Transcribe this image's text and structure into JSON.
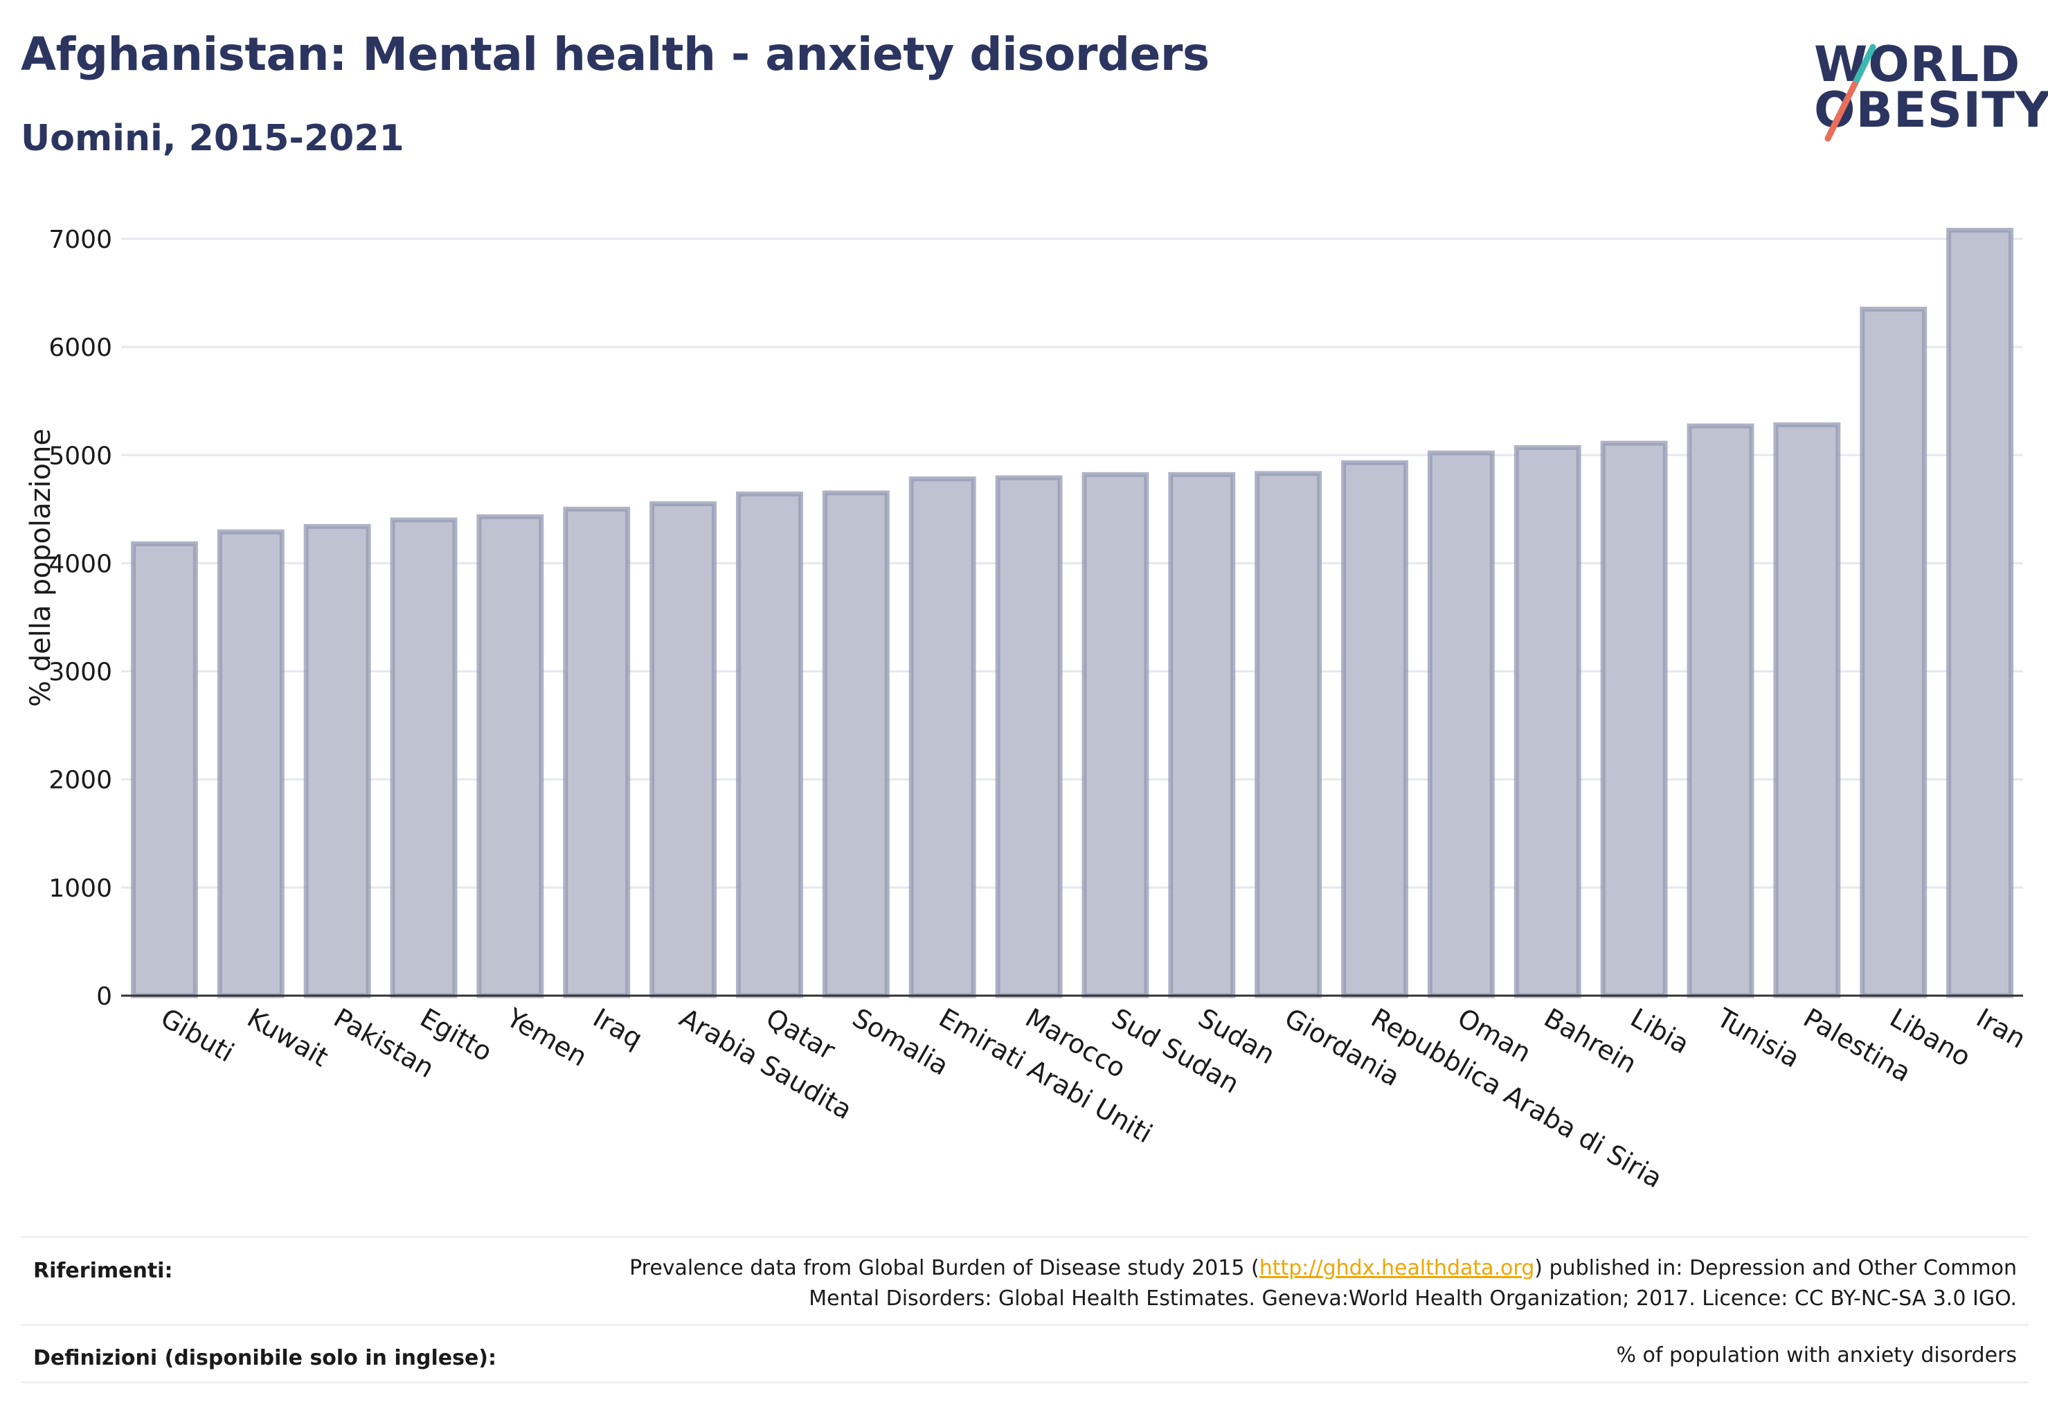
{
  "header": {
    "title": "Afghanistan: Mental health - anxiety disorders",
    "subtitle": "Uomini, 2015-2021"
  },
  "logo": {
    "line1": "WORLD",
    "line2": "OBESITY",
    "colors": {
      "text": "#2b3560",
      "teal": "#3bb8b0",
      "coral": "#e8705b"
    }
  },
  "chart_data": {
    "type": "bar",
    "categories": [
      "Gibuti",
      "Kuwait",
      "Pakistan",
      "Egitto",
      "Yemen",
      "Iraq",
      "Arabia Saudita",
      "Qatar",
      "Somalia",
      "Emirati Arabi Uniti",
      "Marocco",
      "Sud Sudan",
      "Sudan",
      "Giordania",
      "Repubblica Araba di Siria",
      "Oman",
      "Bahrein",
      "Libia",
      "Tunisia",
      "Palestina",
      "Libano",
      "Iran"
    ],
    "values": [
      4180,
      4290,
      4340,
      4400,
      4430,
      4500,
      4550,
      4640,
      4650,
      4780,
      4790,
      4820,
      4820,
      4830,
      4930,
      5020,
      5070,
      5110,
      5270,
      5280,
      6350,
      7080
    ],
    "ylabel": "% della popolazione",
    "xlabel": "",
    "ylim": [
      0,
      7000
    ],
    "yticks": [
      0,
      1000,
      2000,
      3000,
      4000,
      5000,
      6000,
      7000
    ],
    "grid": true,
    "colors": {
      "bar_fill": "#bfc3d1",
      "bar_stroke": "#9499b3",
      "grid": "#e6e8ee",
      "axis": "#333333"
    }
  },
  "footer": {
    "references_label": "Riferimenti:",
    "references_text_before": "Prevalence data from Global Burden of Disease study 2015 (",
    "references_link": "http://ghdx.healthdata.org",
    "references_text_after": ") published in: Depression and Other Common",
    "references_line2": "Mental Disorders: Global Health Estimates. Geneva:World Health Organization; 2017. Licence: CC BY-NC-SA 3.0 IGO.",
    "definitions_label": "Definizioni (disponibile solo in inglese):",
    "definitions_text": "% of population with anxiety disorders"
  }
}
